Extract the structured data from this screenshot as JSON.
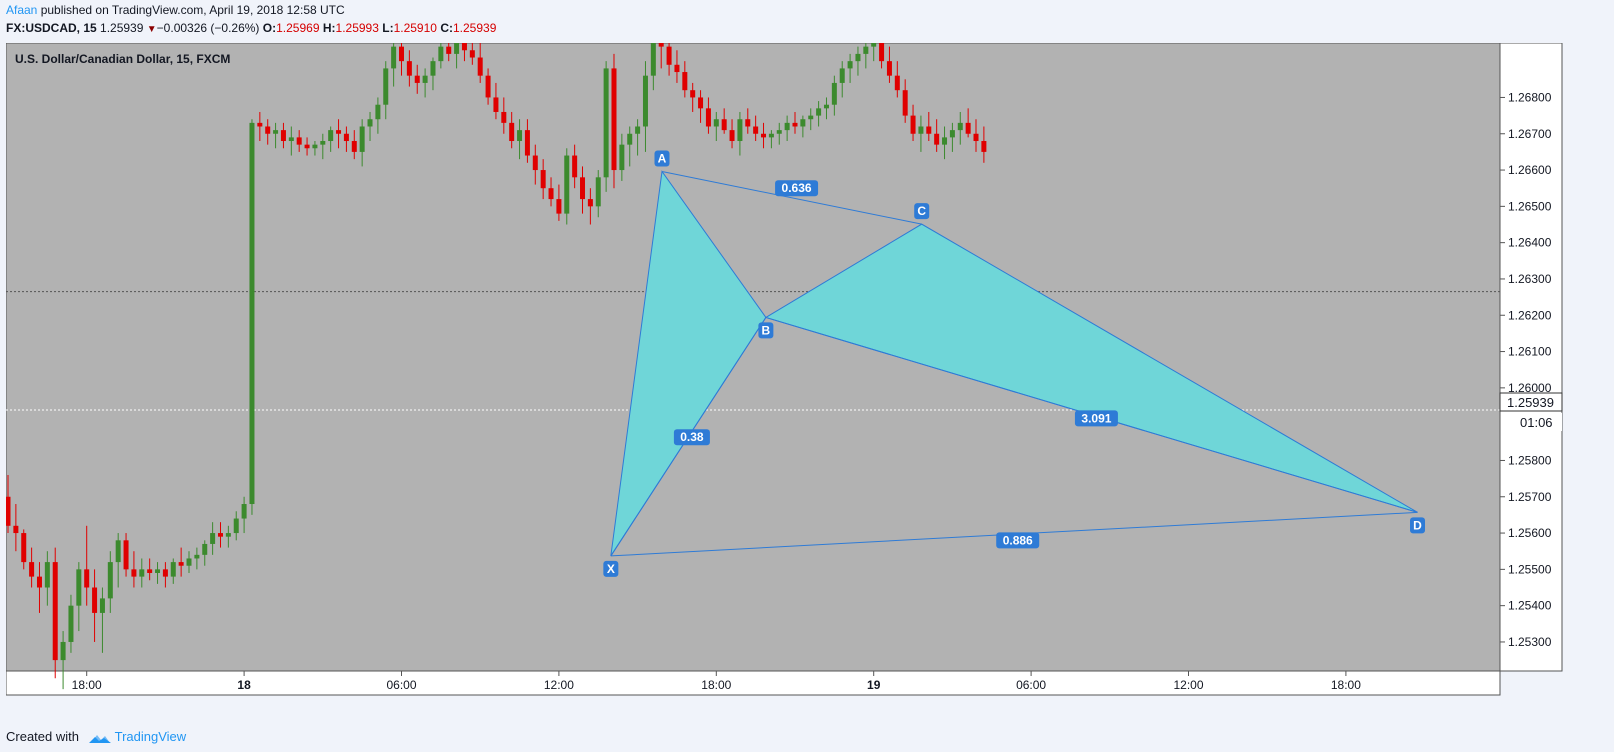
{
  "header": {
    "author": "Afaan",
    "published_text": " published on TradingView.com, April 19, 2018 12:58 UTC",
    "symbol": "FX:USDCAD, 15",
    "last": "1.25939",
    "change": "−0.00326 (−0.26%)",
    "o_label": "O:",
    "o_value": "1.25969",
    "h_label": "H:",
    "h_value": "1.25993",
    "l_label": "L:",
    "l_value": "1.25910",
    "c_label": "C:",
    "c_value": "1.25939"
  },
  "footer": {
    "created_with": "Created with",
    "brand": "TradingView"
  },
  "colors": {
    "background": "#b2b2b2",
    "up": "#3c8a2e",
    "down": "#e00000",
    "pattern_fill": "#6fd6d8",
    "pattern_line": "#2e7bd6",
    "label_bg": "#2e7bd6",
    "brand": "#2196f3",
    "red_text": "#d50000"
  },
  "chart_data": {
    "type": "candlestick",
    "title": "U.S. Dollar/Canadian Dollar, 15, FXCM",
    "y_range": [
      1.2522,
      1.2695
    ],
    "y_ticks": [
      "1.26800",
      "1.26700",
      "1.26600",
      "1.26500",
      "1.26400",
      "1.26300",
      "1.26200",
      "1.26100",
      "1.26000",
      "1.25800",
      "1.25700",
      "1.25600",
      "1.25500",
      "1.25400",
      "1.25300"
    ],
    "x_ticks": [
      {
        "bar": 10,
        "label": "18:00",
        "bold": false
      },
      {
        "bar": 30,
        "label": "18",
        "bold": true
      },
      {
        "bar": 50,
        "label": "06:00",
        "bold": false
      },
      {
        "bar": 70,
        "label": "12:00",
        "bold": false
      },
      {
        "bar": 90,
        "label": "18:00",
        "bold": false
      },
      {
        "bar": 110,
        "label": "19",
        "bold": true
      },
      {
        "bar": 130,
        "label": "06:00",
        "bold": false
      },
      {
        "bar": 150,
        "label": "12:00",
        "bold": false
      },
      {
        "bar": 170,
        "label": "18:00",
        "bold": false
      }
    ],
    "price_label": "1.25939",
    "countdown": "01:06",
    "ref_price": 1.26265,
    "last_price": 1.25939,
    "harmonic_pattern": {
      "points": [
        {
          "label": "X",
          "bar": 76.6,
          "price": 1.25537
        },
        {
          "label": "A",
          "bar": 83.1,
          "price": 1.26596
        },
        {
          "label": "B",
          "bar": 96.3,
          "price": 1.26194
        },
        {
          "label": "C",
          "bar": 116.1,
          "price": 1.26451
        },
        {
          "label": "D",
          "bar": 179.1,
          "price": 1.25657
        }
      ],
      "ratios": [
        {
          "label": "0.636",
          "bar": 100.2,
          "price": 1.2655
        },
        {
          "label": "0.38",
          "bar": 86.9,
          "price": 1.25864
        },
        {
          "label": "3.091",
          "bar": 138.3,
          "price": 1.25916
        },
        {
          "label": "0.886",
          "bar": 128.3,
          "price": 1.2558
        }
      ]
    },
    "candles": [
      [
        1.257,
        1.2576,
        1.256,
        1.2562
      ],
      [
        1.2562,
        1.2568,
        1.2555,
        1.256
      ],
      [
        1.256,
        1.2561,
        1.255,
        1.2552
      ],
      [
        1.2552,
        1.2556,
        1.2545,
        1.2548
      ],
      [
        1.2548,
        1.2552,
        1.2538,
        1.2545
      ],
      [
        1.2545,
        1.2555,
        1.254,
        1.2552
      ],
      [
        1.2552,
        1.2556,
        1.252,
        1.2525
      ],
      [
        1.2525,
        1.2533,
        1.2517,
        1.253
      ],
      [
        1.253,
        1.2543,
        1.2527,
        1.254
      ],
      [
        1.254,
        1.2552,
        1.2533,
        1.255
      ],
      [
        1.255,
        1.2562,
        1.254,
        1.2545
      ],
      [
        1.2545,
        1.255,
        1.253,
        1.2538
      ],
      [
        1.2538,
        1.2545,
        1.2527,
        1.2542
      ],
      [
        1.2542,
        1.2555,
        1.2538,
        1.2552
      ],
      [
        1.2552,
        1.256,
        1.2545,
        1.2558
      ],
      [
        1.2558,
        1.256,
        1.2548,
        1.255
      ],
      [
        1.255,
        1.2555,
        1.2545,
        1.2548
      ],
      [
        1.2548,
        1.2553,
        1.2545,
        1.255
      ],
      [
        1.255,
        1.2553,
        1.2547,
        1.2549
      ],
      [
        1.2549,
        1.2552,
        1.2546,
        1.255
      ],
      [
        1.255,
        1.2552,
        1.2545,
        1.2548
      ],
      [
        1.2548,
        1.2553,
        1.2546,
        1.2552
      ],
      [
        1.2552,
        1.2556,
        1.2548,
        1.2551
      ],
      [
        1.2551,
        1.2555,
        1.2549,
        1.2553
      ],
      [
        1.2553,
        1.2556,
        1.255,
        1.2554
      ],
      [
        1.2554,
        1.2558,
        1.2551,
        1.2557
      ],
      [
        1.2557,
        1.2563,
        1.2554,
        1.256
      ],
      [
        1.256,
        1.2563,
        1.2556,
        1.2559
      ],
      [
        1.2559,
        1.2562,
        1.2556,
        1.256
      ],
      [
        1.256,
        1.2566,
        1.2558,
        1.2564
      ],
      [
        1.2564,
        1.257,
        1.256,
        1.2568
      ],
      [
        1.2568,
        1.2674,
        1.2565,
        1.2673
      ],
      [
        1.2673,
        1.2676,
        1.2668,
        1.2672
      ],
      [
        1.2672,
        1.2674,
        1.2667,
        1.267
      ],
      [
        1.267,
        1.2673,
        1.2666,
        1.2671
      ],
      [
        1.2671,
        1.2673,
        1.2666,
        1.2668
      ],
      [
        1.2668,
        1.2672,
        1.2664,
        1.2669
      ],
      [
        1.2669,
        1.2671,
        1.2665,
        1.2667
      ],
      [
        1.2667,
        1.2669,
        1.2664,
        1.2666
      ],
      [
        1.2666,
        1.2668,
        1.2664,
        1.2667
      ],
      [
        1.2667,
        1.267,
        1.2663,
        1.2668
      ],
      [
        1.2668,
        1.2672,
        1.2665,
        1.2671
      ],
      [
        1.2671,
        1.2674,
        1.2666,
        1.267
      ],
      [
        1.267,
        1.2672,
        1.2665,
        1.2668
      ],
      [
        1.2668,
        1.2671,
        1.2663,
        1.2665
      ],
      [
        1.2665,
        1.2674,
        1.2661,
        1.2672
      ],
      [
        1.2672,
        1.2676,
        1.2668,
        1.2674
      ],
      [
        1.2674,
        1.268,
        1.267,
        1.2678
      ],
      [
        1.2678,
        1.269,
        1.2674,
        1.2688
      ],
      [
        1.2688,
        1.2696,
        1.2683,
        1.2694
      ],
      [
        1.2694,
        1.2697,
        1.2686,
        1.269
      ],
      [
        1.269,
        1.2693,
        1.2683,
        1.2686
      ],
      [
        1.2686,
        1.2689,
        1.2681,
        1.2684
      ],
      [
        1.2684,
        1.2688,
        1.268,
        1.2686
      ],
      [
        1.2686,
        1.2691,
        1.2682,
        1.269
      ],
      [
        1.269,
        1.2695,
        1.2688,
        1.2694
      ],
      [
        1.2694,
        1.2696,
        1.269,
        1.2692
      ],
      [
        1.2692,
        1.2697,
        1.2688,
        1.2696
      ],
      [
        1.2696,
        1.2697,
        1.269,
        1.2693
      ],
      [
        1.2693,
        1.2697,
        1.2689,
        1.2691
      ],
      [
        1.2691,
        1.2695,
        1.2684,
        1.2686
      ],
      [
        1.2686,
        1.2688,
        1.2678,
        1.268
      ],
      [
        1.268,
        1.2684,
        1.2674,
        1.2676
      ],
      [
        1.2676,
        1.268,
        1.267,
        1.2673
      ],
      [
        1.2673,
        1.2676,
        1.2666,
        1.2668
      ],
      [
        1.2668,
        1.2674,
        1.2663,
        1.2671
      ],
      [
        1.2671,
        1.2674,
        1.2662,
        1.2664
      ],
      [
        1.2664,
        1.2667,
        1.2656,
        1.266
      ],
      [
        1.266,
        1.2663,
        1.2652,
        1.2655
      ],
      [
        1.2655,
        1.2658,
        1.265,
        1.2652
      ],
      [
        1.2652,
        1.2656,
        1.2646,
        1.2648
      ],
      [
        1.2648,
        1.2666,
        1.2645,
        1.2664
      ],
      [
        1.2664,
        1.2667,
        1.2655,
        1.2658
      ],
      [
        1.2658,
        1.2661,
        1.2648,
        1.2652
      ],
      [
        1.2652,
        1.2655,
        1.2645,
        1.265
      ],
      [
        1.265,
        1.266,
        1.2647,
        1.2658
      ],
      [
        1.2658,
        1.269,
        1.2654,
        1.2688
      ],
      [
        1.2688,
        1.2692,
        1.2655,
        1.266
      ],
      [
        1.266,
        1.267,
        1.2657,
        1.2667
      ],
      [
        1.2667,
        1.2672,
        1.2661,
        1.267
      ],
      [
        1.267,
        1.2674,
        1.2664,
        1.2672
      ],
      [
        1.2672,
        1.269,
        1.2665,
        1.2686
      ],
      [
        1.2686,
        1.27,
        1.2682,
        1.2698
      ],
      [
        1.2698,
        1.2702,
        1.2688,
        1.2694
      ],
      [
        1.2694,
        1.2698,
        1.2686,
        1.2689
      ],
      [
        1.2689,
        1.2693,
        1.2684,
        1.2687
      ],
      [
        1.2687,
        1.269,
        1.268,
        1.2682
      ],
      [
        1.2682,
        1.2684,
        1.2676,
        1.268
      ],
      [
        1.268,
        1.2682,
        1.2673,
        1.2677
      ],
      [
        1.2677,
        1.268,
        1.267,
        1.2672
      ],
      [
        1.2672,
        1.2676,
        1.2668,
        1.2674
      ],
      [
        1.2674,
        1.2677,
        1.267,
        1.2671
      ],
      [
        1.2671,
        1.2674,
        1.2666,
        1.2668
      ],
      [
        1.2668,
        1.2676,
        1.2664,
        1.2674
      ],
      [
        1.2674,
        1.2677,
        1.267,
        1.2672
      ],
      [
        1.2672,
        1.2675,
        1.2668,
        1.267
      ],
      [
        1.267,
        1.2673,
        1.2666,
        1.2669
      ],
      [
        1.2669,
        1.2671,
        1.2666,
        1.267
      ],
      [
        1.267,
        1.2673,
        1.2667,
        1.2671
      ],
      [
        1.2671,
        1.2675,
        1.2668,
        1.2673
      ],
      [
        1.2673,
        1.2676,
        1.267,
        1.2672
      ],
      [
        1.2672,
        1.2675,
        1.2669,
        1.2674
      ],
      [
        1.2674,
        1.2677,
        1.2671,
        1.2675
      ],
      [
        1.2675,
        1.2679,
        1.2672,
        1.2677
      ],
      [
        1.2677,
        1.268,
        1.2674,
        1.2678
      ],
      [
        1.2678,
        1.2686,
        1.2675,
        1.2684
      ],
      [
        1.2684,
        1.269,
        1.268,
        1.2688
      ],
      [
        1.2688,
        1.2692,
        1.2684,
        1.269
      ],
      [
        1.269,
        1.2694,
        1.2686,
        1.2692
      ],
      [
        1.2692,
        1.2696,
        1.2688,
        1.2694
      ],
      [
        1.2694,
        1.2698,
        1.269,
        1.2695
      ],
      [
        1.2695,
        1.2697,
        1.2688,
        1.269
      ],
      [
        1.269,
        1.2694,
        1.2684,
        1.2686
      ],
      [
        1.2686,
        1.269,
        1.268,
        1.2682
      ],
      [
        1.2682,
        1.2685,
        1.2673,
        1.2675
      ],
      [
        1.2675,
        1.2678,
        1.2668,
        1.267
      ],
      [
        1.267,
        1.2675,
        1.2665,
        1.2672
      ],
      [
        1.2672,
        1.2676,
        1.2668,
        1.267
      ],
      [
        1.267,
        1.2674,
        1.2665,
        1.2667
      ],
      [
        1.2667,
        1.2672,
        1.2663,
        1.2669
      ],
      [
        1.2669,
        1.2673,
        1.2665,
        1.2671
      ],
      [
        1.2671,
        1.2676,
        1.2667,
        1.2673
      ],
      [
        1.2673,
        1.2677,
        1.2669,
        1.267
      ],
      [
        1.267,
        1.2674,
        1.2665,
        1.2668
      ],
      [
        1.2668,
        1.2672,
        1.2662,
        1.2665
      ]
    ]
  }
}
